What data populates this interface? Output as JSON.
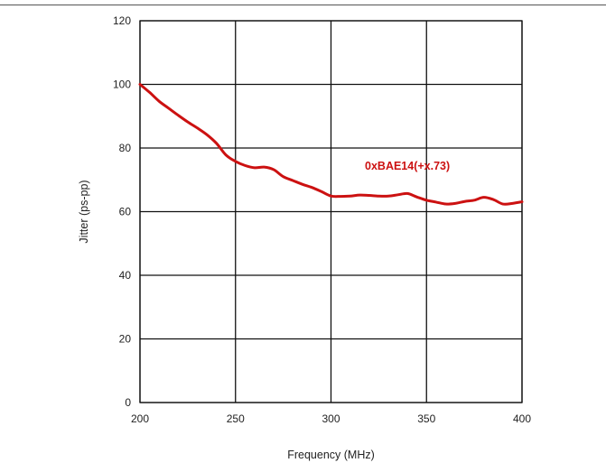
{
  "chart_data": {
    "type": "line",
    "xlabel": "Frequency (MHz)",
    "ylabel": "Jitter (ps-pp)",
    "xlim": [
      200,
      400
    ],
    "ylim": [
      0,
      120
    ],
    "xticks": [
      200,
      250,
      300,
      350,
      400
    ],
    "yticks": [
      0,
      20,
      40,
      60,
      80,
      100,
      120
    ],
    "grid": true,
    "series": [
      {
        "name": "",
        "color": "#cc1111",
        "x": [
          200,
          205,
          210,
          215,
          220,
          225,
          230,
          235,
          240,
          245,
          250,
          255,
          260,
          265,
          270,
          275,
          280,
          285,
          290,
          295,
          300,
          305,
          310,
          315,
          320,
          325,
          330,
          335,
          340,
          345,
          350,
          355,
          360,
          365,
          370,
          375,
          380,
          385,
          390,
          395,
          400
        ],
        "y": [
          100,
          97.5,
          94.7,
          92.5,
          90.3,
          88.2,
          86.3,
          84.2,
          81.5,
          77.8,
          75.8,
          74.5,
          73.8,
          74.0,
          73.2,
          71.0,
          69.8,
          68.6,
          67.6,
          66.3,
          64.9,
          64.8,
          64.9,
          65.2,
          65.1,
          64.9,
          64.9,
          65.3,
          65.7,
          64.6,
          63.6,
          63.0,
          62.4,
          62.6,
          63.2,
          63.6,
          64.5,
          63.8,
          62.4,
          62.6,
          63.1
        ]
      }
    ],
    "annotations": [
      {
        "text": "0xBAE14(+x.73)",
        "x": 340,
        "y": 72
      }
    ]
  }
}
